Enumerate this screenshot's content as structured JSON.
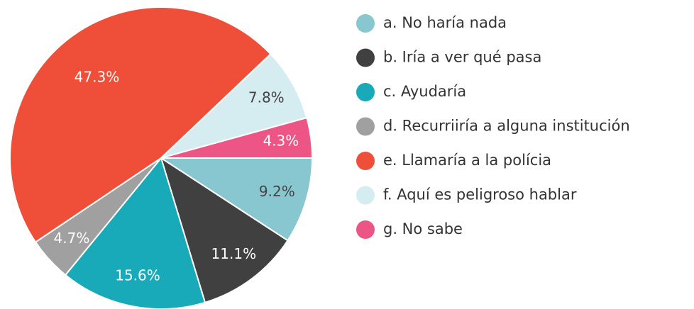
{
  "chart_data": {
    "type": "pie",
    "categories": [
      "a. No haría nada",
      "b. Iría a ver qué pasa",
      "c. Ayudaría",
      "d. Recurriiría a alguna institución",
      "e. Llamaría a la polícia",
      "f. Aquí es peligroso hablar",
      "g. No sabe"
    ],
    "values": [
      9.2,
      11.1,
      15.6,
      4.7,
      47.3,
      7.8,
      4.3
    ],
    "value_labels": [
      "9.2%",
      "11.1%",
      "15.6%",
      "4.7%",
      "47.3%",
      "7.8%",
      "4.3%"
    ],
    "colors": [
      "#88c6d0",
      "#404040",
      "#18aab8",
      "#a0a0a0",
      "#ef4f38",
      "#d5ecf1",
      "#ec5585"
    ],
    "legend": "right"
  }
}
